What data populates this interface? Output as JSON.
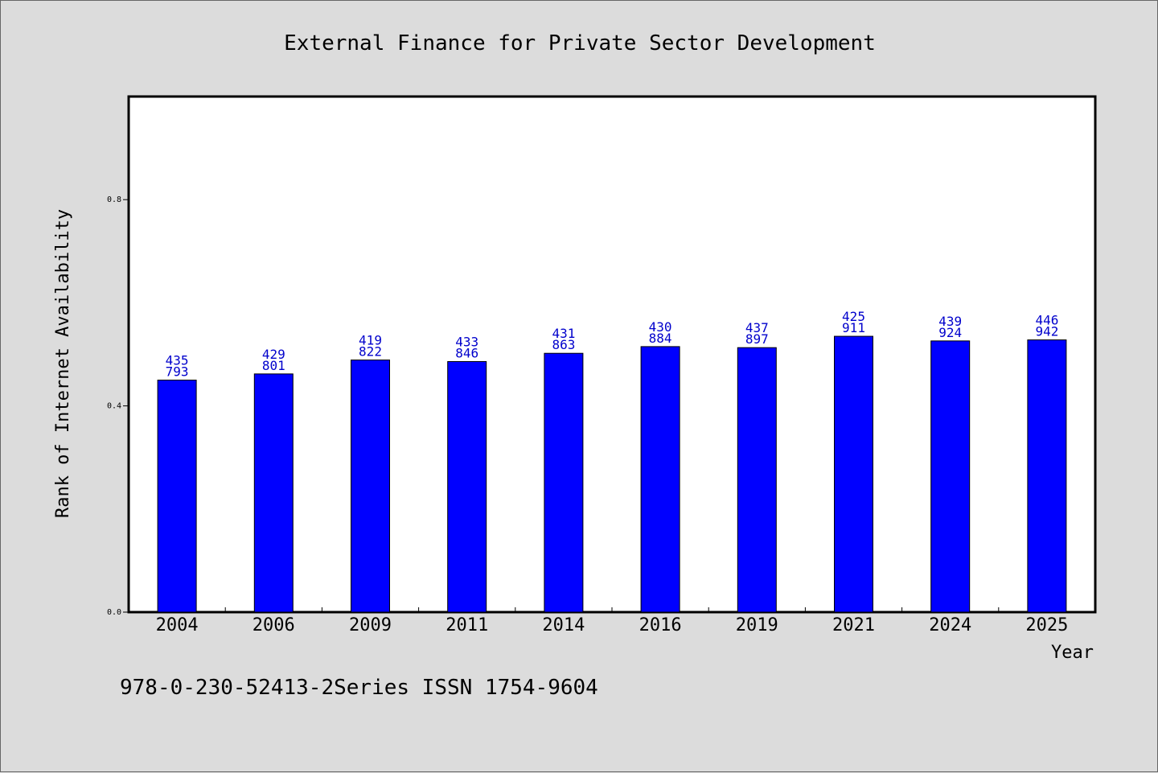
{
  "chart_data": {
    "type": "bar",
    "title": "External Finance for Private Sector Development",
    "xlabel": "Year",
    "ylabel": "Rank of Internet Availability",
    "footer": "978-0-230-52413-2Series ISSN 1754-9604",
    "categories": [
      "2004",
      "2006",
      "2009",
      "2011",
      "2014",
      "2016",
      "2019",
      "2021",
      "2024",
      "2025"
    ],
    "values": [
      0.45,
      0.462,
      0.489,
      0.486,
      0.502,
      0.515,
      0.513,
      0.535,
      0.526,
      0.528
    ],
    "labels_top": [
      "435",
      "429",
      "419",
      "433",
      "431",
      "430",
      "437",
      "425",
      "439",
      "446"
    ],
    "labels_bottom": [
      "793",
      "801",
      "822",
      "846",
      "863",
      "884",
      "897",
      "911",
      "924",
      "942"
    ],
    "ylim": [
      0,
      1.0
    ],
    "yticks": [
      "0.0",
      "0.4",
      "0.8"
    ],
    "bar_color": "#0000ff",
    "label_color": "#0000cc",
    "background": "#dcdcdc",
    "plot_background": "#ffffff",
    "grid": false,
    "legend": "none"
  }
}
